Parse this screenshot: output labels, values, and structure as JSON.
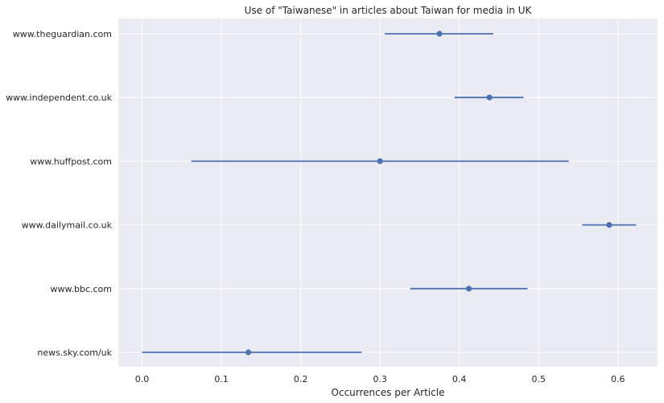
{
  "chart_data": {
    "type": "scatter",
    "title": "Use of \"Taiwanese\" in articles about Taiwan for media in UK",
    "xlabel": "Occurrences per Article",
    "ylabel": "",
    "xlim": [
      -0.03,
      0.65
    ],
    "x_ticks": [
      "0.0",
      "0.1",
      "0.2",
      "0.3",
      "0.4",
      "0.5",
      "0.6"
    ],
    "grid": true,
    "series_color": "#4c72b0",
    "background_color": "#eaeaf2",
    "points": [
      {
        "label": "www.theguardian.com",
        "value": 0.375,
        "low": 0.306,
        "high": 0.443
      },
      {
        "label": "www.independent.co.uk",
        "value": 0.438,
        "low": 0.394,
        "high": 0.481
      },
      {
        "label": "www.huffpost.com",
        "value": 0.3,
        "low": 0.062,
        "high": 0.538
      },
      {
        "label": "www.dailymail.co.uk",
        "value": 0.589,
        "low": 0.555,
        "high": 0.623
      },
      {
        "label": "www.bbc.com",
        "value": 0.412,
        "low": 0.338,
        "high": 0.486
      },
      {
        "label": "news.sky.com/uk",
        "value": 0.134,
        "low": 0.0,
        "high": 0.277
      }
    ]
  }
}
